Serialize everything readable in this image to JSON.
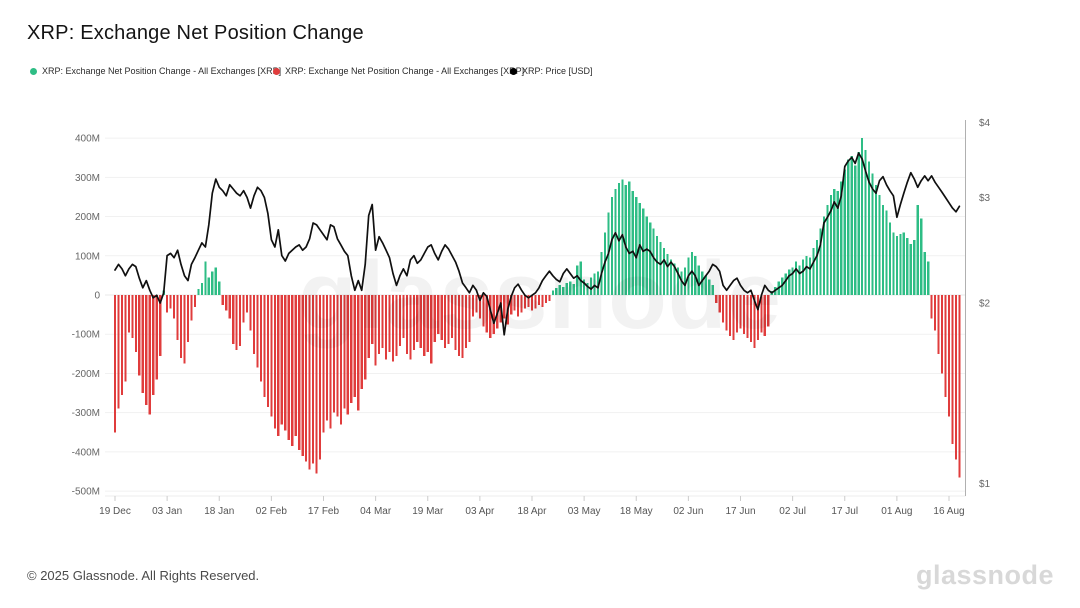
{
  "header": {
    "title": "XRP: Exchange Net Position Change"
  },
  "legend": [
    {
      "label": "XRP: Exchange Net Position Change - All Exchanges [XRP]",
      "color": "#2EBD85"
    },
    {
      "label": "XRP: Exchange Net Position Change - All Exchanges [XRP]",
      "color": "#E03C3C"
    },
    {
      "label": "XRP: Price [USD]",
      "color": "#000000"
    }
  ],
  "watermark": "glassnode",
  "footer": {
    "copyright": "© 2025 Glassnode. All Rights Reserved.",
    "brand": "glassnode"
  },
  "chart_data": {
    "type": "bar+line",
    "title": "XRP: Exchange Net Position Change",
    "x_start_label": "19 Dec",
    "x_tick_labels": [
      "19 Dec",
      "03 Jan",
      "18 Jan",
      "02 Feb",
      "17 Feb",
      "04 Mar",
      "19 Mar",
      "03 Apr",
      "18 Apr",
      "03 May",
      "18 May",
      "02 Jun",
      "17 Jun",
      "02 Jul",
      "17 Jul",
      "01 Aug",
      "16 Aug"
    ],
    "x_tick_day_index": [
      0,
      15,
      30,
      45,
      60,
      75,
      90,
      105,
      120,
      135,
      150,
      165,
      180,
      195,
      210,
      225,
      240
    ],
    "left_axis": {
      "unit": "M (XRP)",
      "tick_labels": [
        "400M",
        "300M",
        "200M",
        "100M",
        "0",
        "-100M",
        "-200M",
        "-300M",
        "-400M",
        "-500M"
      ],
      "tick_values": [
        400,
        300,
        200,
        100,
        0,
        -100,
        -200,
        -300,
        -400,
        -500
      ],
      "range": [
        -500,
        400
      ]
    },
    "right_axis": {
      "unit": "USD",
      "scale": "log",
      "tick_labels": [
        "$4",
        "$3",
        "$2",
        "$1"
      ],
      "tick_values": [
        4,
        3,
        2,
        1
      ],
      "range": [
        1,
        4
      ]
    },
    "colors": {
      "positive": "#2EBD85",
      "negative": "#E03C3C",
      "price": "#101010",
      "grid": "#f1f1f1",
      "axis": "#b0b0b0"
    },
    "bar_values_millions": [
      -350,
      -290,
      -255,
      -220,
      -95,
      -110,
      -145,
      -205,
      -250,
      -280,
      -305,
      -255,
      -215,
      -155,
      12,
      -45,
      -35,
      -60,
      -115,
      -160,
      -175,
      -120,
      -65,
      -30,
      15,
      30,
      85,
      45,
      60,
      70,
      35,
      -25,
      -40,
      -60,
      -125,
      -140,
      -130,
      -70,
      -45,
      -90,
      -150,
      -185,
      -220,
      -260,
      -285,
      -310,
      -340,
      -360,
      -330,
      -345,
      -370,
      -385,
      -360,
      -395,
      -410,
      -425,
      -445,
      -430,
      -455,
      -420,
      -350,
      -320,
      -340,
      -300,
      -310,
      -330,
      -290,
      -305,
      -275,
      -260,
      -295,
      -240,
      -215,
      -160,
      -125,
      -180,
      -150,
      -135,
      -165,
      -145,
      -170,
      -155,
      -130,
      -110,
      -150,
      -165,
      -140,
      -120,
      -135,
      -155,
      -145,
      -175,
      -120,
      -100,
      -115,
      -135,
      -125,
      -110,
      -140,
      -155,
      -160,
      -135,
      -120,
      -55,
      -45,
      -60,
      -80,
      -95,
      -110,
      -100,
      -85,
      -70,
      -60,
      -75,
      -50,
      -40,
      -55,
      -45,
      -35,
      -30,
      -40,
      -35,
      -25,
      -30,
      -20,
      -15,
      12,
      18,
      25,
      20,
      30,
      35,
      28,
      75,
      85,
      40,
      30,
      45,
      55,
      60,
      110,
      160,
      210,
      250,
      270,
      285,
      295,
      280,
      290,
      265,
      250,
      235,
      220,
      200,
      185,
      170,
      150,
      135,
      120,
      105,
      90,
      80,
      70,
      60,
      70,
      95,
      110,
      100,
      75,
      60,
      50,
      40,
      25,
      -20,
      -45,
      -70,
      -90,
      -105,
      -115,
      -95,
      -85,
      -100,
      -110,
      -120,
      -135,
      -115,
      -95,
      -105,
      -80,
      10,
      20,
      35,
      45,
      55,
      65,
      70,
      85,
      75,
      90,
      100,
      95,
      120,
      140,
      170,
      200,
      230,
      255,
      270,
      265,
      290,
      320,
      345,
      355,
      330,
      365,
      400,
      370,
      340,
      310,
      280,
      255,
      230,
      215,
      185,
      160,
      150,
      155,
      160,
      145,
      130,
      140,
      230,
      195,
      110,
      85,
      -60,
      -90,
      -150,
      -200,
      -260,
      -310,
      -380,
      -420,
      -465
    ],
    "price_usd": [
      2.27,
      2.32,
      2.28,
      2.22,
      2.28,
      2.32,
      2.3,
      2.2,
      2.12,
      2.18,
      2.1,
      2.04,
      2.06,
      2.0,
      2.08,
      2.4,
      2.42,
      2.38,
      2.45,
      2.32,
      2.22,
      2.18,
      2.32,
      2.38,
      2.45,
      2.52,
      2.48,
      2.7,
      3.05,
      3.22,
      3.12,
      3.08,
      3.02,
      3.15,
      3.1,
      3.05,
      3.02,
      3.08,
      3.0,
      2.88,
      3.02,
      3.12,
      3.08,
      3.0,
      2.82,
      2.55,
      2.48,
      2.65,
      2.4,
      2.35,
      2.42,
      2.45,
      2.48,
      2.5,
      2.45,
      2.48,
      2.56,
      2.72,
      2.7,
      2.65,
      2.6,
      2.55,
      2.7,
      2.68,
      2.56,
      2.5,
      2.44,
      2.4,
      2.22,
      2.1,
      2.18,
      2.1,
      2.32,
      2.8,
      2.92,
      2.45,
      2.58,
      2.52,
      2.45,
      2.38,
      2.24,
      2.14,
      2.22,
      2.28,
      2.22,
      2.36,
      2.4,
      2.33,
      2.36,
      2.42,
      2.48,
      2.5,
      2.42,
      2.36,
      2.44,
      2.5,
      2.46,
      2.4,
      2.34,
      2.26,
      2.16,
      2.12,
      2.08,
      2.14,
      2.1,
      2.02,
      2.08,
      2.05,
      1.95,
      1.85,
      1.92,
      2.0,
      1.77,
      1.95,
      2.05,
      2.12,
      2.15,
      2.1,
      2.06,
      2.04,
      2.06,
      2.08,
      2.12,
      2.18,
      2.22,
      2.26,
      2.22,
      2.19,
      2.17,
      2.24,
      2.28,
      2.24,
      2.2,
      2.22,
      2.18,
      2.16,
      2.13,
      2.11,
      2.14,
      2.12,
      2.24,
      2.34,
      2.42,
      2.55,
      2.62,
      2.54,
      2.6,
      2.48,
      2.42,
      2.44,
      2.38,
      2.5,
      2.44,
      2.46,
      2.44,
      2.38,
      2.34,
      2.32,
      2.36,
      2.3,
      2.34,
      2.3,
      2.24,
      2.18,
      2.14,
      2.22,
      2.26,
      2.22,
      2.14,
      2.18,
      2.22,
      2.26,
      2.32,
      2.3,
      2.26,
      2.14,
      2.1,
      2.14,
      2.18,
      2.2,
      2.14,
      2.1,
      2.08,
      2.1,
      2.02,
      1.95,
      2.06,
      2.14,
      2.1,
      2.08,
      2.1,
      2.12,
      2.14,
      2.18,
      2.22,
      2.24,
      2.28,
      2.24,
      2.26,
      2.3,
      2.28,
      2.34,
      2.4,
      2.5,
      2.72,
      2.78,
      2.85,
      2.95,
      2.88,
      3.02,
      3.38,
      3.45,
      3.5,
      3.42,
      3.56,
      3.48,
      3.32,
      3.18,
      3.1,
      3.05,
      3.2,
      3.25,
      3.15,
      3.08,
      3.02,
      2.78,
      2.92,
      3.05,
      3.18,
      3.3,
      3.22,
      3.12,
      3.2,
      3.26,
      3.2,
      3.26,
      3.18,
      3.12,
      3.06,
      3.0,
      2.94,
      2.88,
      2.84,
      2.9
    ]
  }
}
